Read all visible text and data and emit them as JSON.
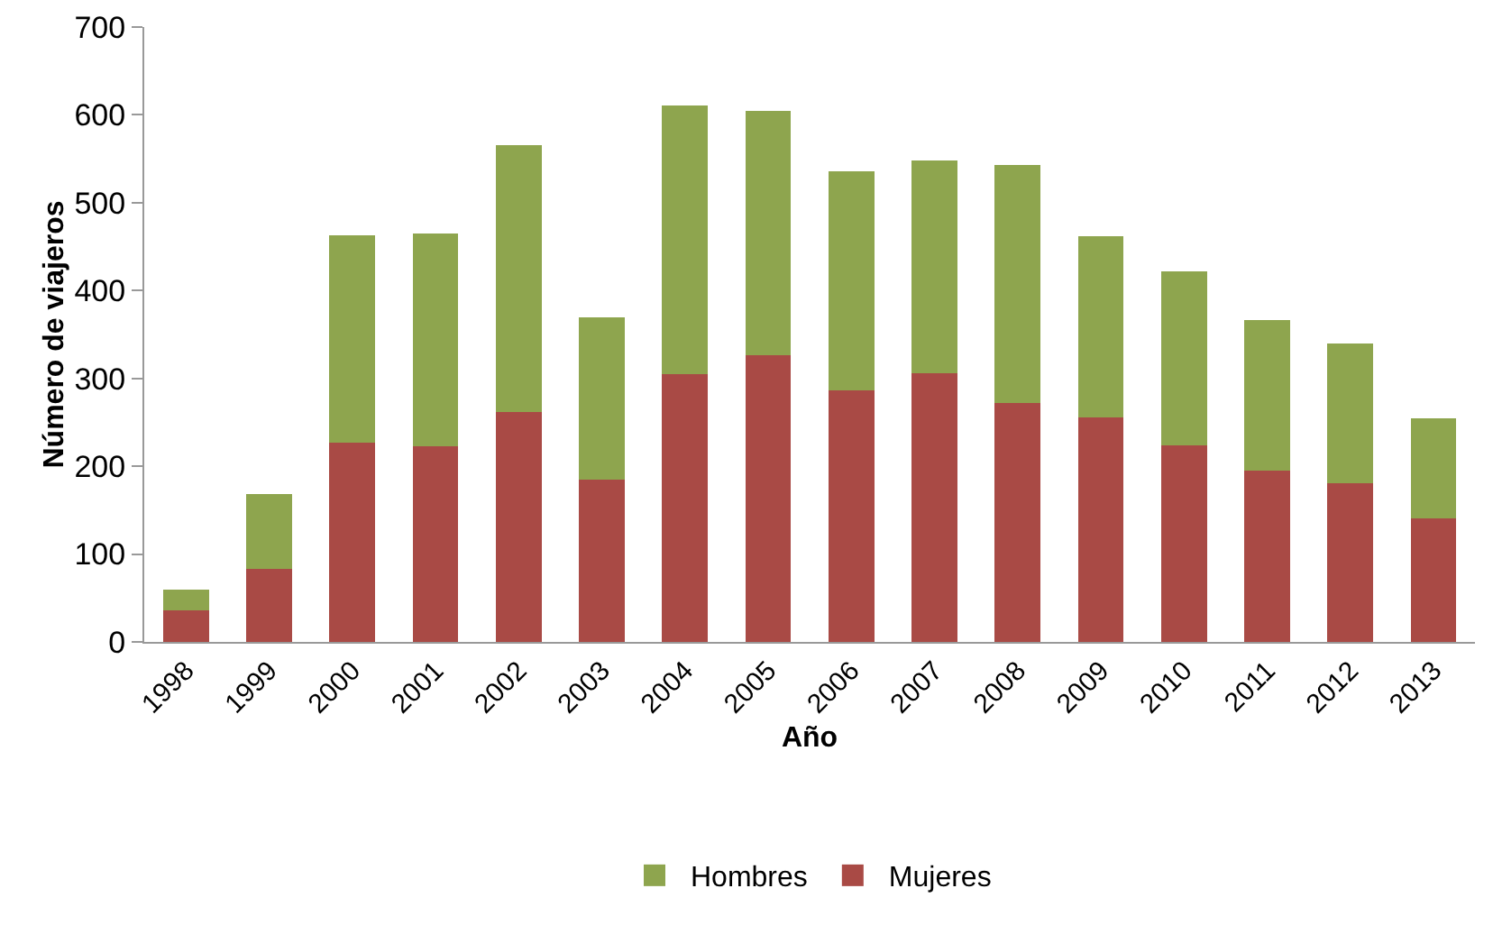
{
  "chart_data": {
    "type": "bar",
    "stacked": true,
    "xlabel": "Año",
    "ylabel": "Número de viajeros",
    "categories": [
      "1998",
      "1999",
      "2000",
      "2001",
      "2002",
      "2003",
      "2004",
      "2005",
      "2006",
      "2007",
      "2008",
      "2009",
      "2010",
      "2011",
      "2012",
      "2013"
    ],
    "series": [
      {
        "name": "Mujeres",
        "color": "#a94a45",
        "values": [
          36,
          83,
          227,
          223,
          262,
          185,
          305,
          326,
          286,
          306,
          272,
          256,
          224,
          195,
          181,
          141
        ]
      },
      {
        "name": "Hombres",
        "color": "#8ea54e",
        "values": [
          24,
          85,
          236,
          242,
          304,
          185,
          306,
          279,
          250,
          242,
          271,
          206,
          198,
          171,
          159,
          114
        ]
      }
    ],
    "ylim": [
      0,
      700
    ],
    "yticks": [
      0,
      100,
      200,
      300,
      400,
      500,
      600,
      700
    ],
    "grid": false,
    "legend": "bottom"
  }
}
